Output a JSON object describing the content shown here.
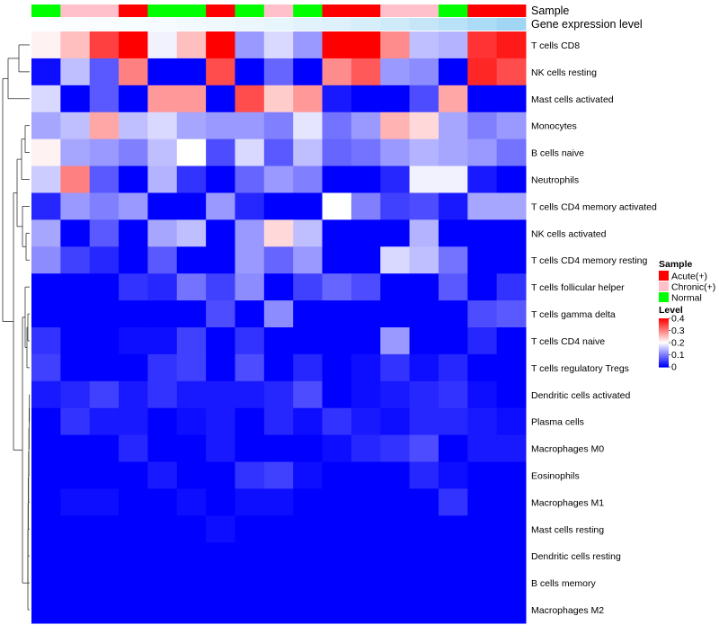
{
  "chart_data": {
    "type": "heatmap",
    "title": "",
    "annotation_tracks": [
      {
        "name": "Sample",
        "values": [
          "Normal",
          "Chronic(+)",
          "Chronic(+)",
          "Acute(+)",
          "Normal",
          "Normal",
          "Acute(+)",
          "Normal",
          "Chronic(+)",
          "Normal",
          "Acute(+)",
          "Acute(+)",
          "Chronic(+)",
          "Chronic(+)",
          "Normal",
          "Acute(+)",
          "Acute(+)"
        ]
      },
      {
        "name": "Gene expression level",
        "values": [
          0.02,
          0.03,
          0.04,
          0.06,
          0.08,
          0.1,
          0.13,
          0.16,
          0.19,
          0.23,
          0.27,
          0.32,
          0.38,
          0.45,
          0.55,
          0.65,
          0.75
        ]
      }
    ],
    "rows": [
      "T cells CD8",
      "NK cells resting",
      "Mast cells activated",
      "Monocytes",
      "B cells naive",
      "Neutrophils",
      "T cells CD4 memory activated",
      "NK cells activated",
      "T cells CD4 memory resting",
      "T cells follicular helper",
      "T cells gamma delta",
      "T cells CD4 naive",
      "T cells regulatory  Tregs",
      "Dendritic cells activated",
      "Plasma cells",
      "Macrophages M0",
      "Eosinophils",
      "Macrophages M1",
      "Mast cells resting",
      "Dendritic cells resting",
      "B cells memory",
      "Macrophages M2"
    ],
    "n_columns": 17,
    "matrix": [
      [
        0.21,
        0.25,
        0.35,
        0.4,
        0.19,
        0.25,
        0.4,
        0.12,
        0.17,
        0.12,
        0.4,
        0.4,
        0.29,
        0.15,
        0.14,
        0.36,
        0.38
      ],
      [
        0.01,
        0.15,
        0.07,
        0.3,
        0.0,
        0.0,
        0.34,
        0.0,
        0.08,
        0.0,
        0.29,
        0.33,
        0.12,
        0.11,
        0.0,
        0.37,
        0.34
      ],
      [
        0.17,
        0.0,
        0.07,
        0.0,
        0.28,
        0.28,
        0.0,
        0.34,
        0.24,
        0.28,
        0.02,
        0.0,
        0.0,
        0.06,
        0.27,
        0.0,
        0.0
      ],
      [
        0.13,
        0.15,
        0.27,
        0.15,
        0.17,
        0.13,
        0.12,
        0.12,
        0.1,
        0.18,
        0.09,
        0.12,
        0.26,
        0.23,
        0.13,
        0.1,
        0.12
      ],
      [
        0.21,
        0.13,
        0.12,
        0.1,
        0.15,
        0.2,
        0.06,
        0.17,
        0.07,
        0.15,
        0.08,
        0.09,
        0.12,
        0.14,
        0.13,
        0.12,
        0.09
      ],
      [
        0.16,
        0.3,
        0.07,
        0.0,
        0.14,
        0.04,
        0.0,
        0.08,
        0.12,
        0.1,
        0.0,
        0.0,
        0.03,
        0.19,
        0.19,
        0.02,
        0.0
      ],
      [
        0.03,
        0.12,
        0.1,
        0.12,
        0.0,
        0.0,
        0.12,
        0.03,
        0.0,
        0.0,
        0.2,
        0.1,
        0.05,
        0.06,
        0.02,
        0.13,
        0.13
      ],
      [
        0.13,
        0.0,
        0.07,
        0.0,
        0.13,
        0.15,
        0.0,
        0.12,
        0.23,
        0.15,
        0.0,
        0.0,
        0.0,
        0.14,
        0.0,
        0.0,
        0.0
      ],
      [
        0.11,
        0.05,
        0.03,
        0.0,
        0.07,
        0.0,
        0.0,
        0.12,
        0.08,
        0.12,
        0.0,
        0.0,
        0.17,
        0.15,
        0.09,
        0.0,
        0.0
      ],
      [
        0.0,
        0.0,
        0.0,
        0.04,
        0.03,
        0.09,
        0.05,
        0.11,
        0.0,
        0.05,
        0.08,
        0.06,
        0.0,
        0.0,
        0.07,
        0.0,
        0.04
      ],
      [
        0.0,
        0.0,
        0.0,
        0.0,
        0.0,
        0.0,
        0.06,
        0.0,
        0.11,
        0.0,
        0.0,
        0.0,
        0.0,
        0.0,
        0.0,
        0.06,
        0.07
      ],
      [
        0.04,
        0.0,
        0.0,
        0.01,
        0.01,
        0.05,
        0.0,
        0.04,
        0.0,
        0.0,
        0.0,
        0.0,
        0.12,
        0.0,
        0.0,
        0.03,
        0.0
      ],
      [
        0.05,
        0.0,
        0.0,
        0.0,
        0.04,
        0.05,
        0.0,
        0.06,
        0.0,
        0.03,
        0.0,
        0.01,
        0.04,
        0.01,
        0.03,
        0.0,
        0.0
      ],
      [
        0.02,
        0.03,
        0.05,
        0.02,
        0.04,
        0.02,
        0.02,
        0.02,
        0.03,
        0.06,
        0.0,
        0.01,
        0.02,
        0.03,
        0.04,
        0.01,
        0.0
      ],
      [
        0.0,
        0.04,
        0.02,
        0.02,
        0.0,
        0.01,
        0.02,
        0.0,
        0.03,
        0.01,
        0.04,
        0.02,
        0.01,
        0.03,
        0.03,
        0.02,
        0.01
      ],
      [
        0.0,
        0.0,
        0.0,
        0.03,
        0.0,
        0.0,
        0.02,
        0.0,
        0.0,
        0.0,
        0.01,
        0.03,
        0.04,
        0.06,
        0.0,
        0.02,
        0.02
      ],
      [
        0.0,
        0.0,
        0.0,
        0.0,
        0.02,
        0.0,
        0.0,
        0.04,
        0.05,
        0.01,
        0.0,
        0.0,
        0.0,
        0.03,
        0.01,
        0.0,
        0.0
      ],
      [
        0.0,
        0.01,
        0.01,
        0.0,
        0.0,
        0.01,
        0.0,
        0.01,
        0.01,
        0.0,
        0.0,
        0.0,
        0.0,
        0.0,
        0.04,
        0.0,
        0.0
      ],
      [
        0.0,
        0.0,
        0.0,
        0.0,
        0.0,
        0.0,
        0.01,
        0.0,
        0.0,
        0.0,
        0.0,
        0.0,
        0.0,
        0.0,
        0.0,
        0.0,
        0.0
      ],
      [
        0.0,
        0.0,
        0.0,
        0.0,
        0.0,
        0.0,
        0.0,
        0.0,
        0.0,
        0.0,
        0.0,
        0.0,
        0.0,
        0.0,
        0.0,
        0.0,
        0.0
      ],
      [
        0.0,
        0.0,
        0.0,
        0.0,
        0.0,
        0.0,
        0.0,
        0.0,
        0.0,
        0.0,
        0.0,
        0.0,
        0.0,
        0.0,
        0.0,
        0.0,
        0.0
      ],
      [
        0.0,
        0.0,
        0.0,
        0.0,
        0.0,
        0.0,
        0.0,
        0.0,
        0.0,
        0.0,
        0.0,
        0.0,
        0.0,
        0.0,
        0.0,
        0.0,
        0.0
      ]
    ],
    "color_scale": {
      "min": 0,
      "mid": 0.2,
      "max": 0.4,
      "low_color": "#0000ff",
      "mid_color": "#ffffff",
      "high_color": "#ff0000"
    },
    "legends": [
      {
        "title": "Sample",
        "entries": [
          {
            "label": "Acute(+)",
            "color": "#ff0000"
          },
          {
            "label": "Chronic(+)",
            "color": "#ffc0cb"
          },
          {
            "label": "Normal",
            "color": "#00ff00"
          }
        ]
      },
      {
        "title": "Level",
        "ticks": [
          "0.4",
          "0.3",
          "0.2",
          "0.1",
          "0"
        ],
        "tick_values": [
          0.4,
          0.3,
          0.2,
          0.1,
          0
        ]
      }
    ],
    "legend_position": "right",
    "row_dendrogram": true
  }
}
